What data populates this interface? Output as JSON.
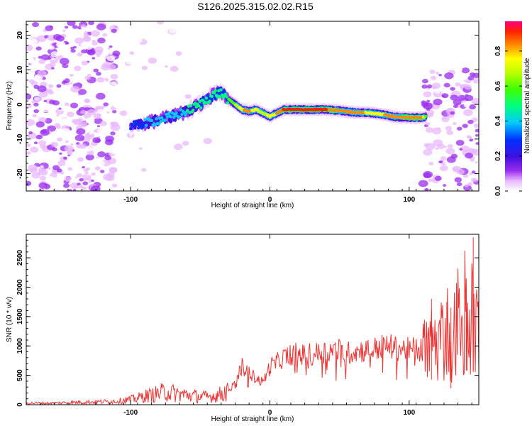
{
  "title": "S126.2025.315.02.02.R15",
  "chart_data": [
    {
      "type": "heatmap",
      "name": "spectrogram",
      "xlabel": "Height of straight line (km)",
      "ylabel": "Frequency (Hz)",
      "xlim": [
        -175,
        150
      ],
      "ylim": [
        -25,
        24
      ],
      "xticks": [
        -100,
        0,
        100
      ],
      "yticks": [
        -20,
        -10,
        0,
        10,
        20
      ],
      "colorbar": {
        "label": "Normalized spectral amplitude",
        "range": [
          0,
          0.97
        ],
        "ticks": [
          "0.0",
          "0.2",
          "0.4",
          "0.6",
          "0.8"
        ]
      },
      "ridge": {
        "description_points_x": [
          -100,
          -90,
          -80,
          -70,
          -60,
          -50,
          -40,
          -35,
          -30,
          -25,
          -20,
          -15,
          -10,
          -5,
          0,
          10,
          20,
          30,
          40,
          50,
          60,
          70,
          80,
          90,
          100,
          110,
          112
        ],
        "freq_y": [
          -6.5,
          -5.5,
          -4.5,
          -3.5,
          -2,
          0,
          3,
          3.2,
          1.5,
          0,
          -1.5,
          -2,
          -1.5,
          -2.5,
          -3.5,
          -1.5,
          -1.5,
          -1.5,
          -1.5,
          -1.8,
          -2.3,
          -2.4,
          -2.8,
          -3.6,
          -3.8,
          -3.8,
          -3.5
        ],
        "peak_amplitude": [
          0.35,
          0.4,
          0.45,
          0.45,
          0.5,
          0.55,
          0.55,
          0.55,
          0.6,
          0.7,
          0.85,
          0.9,
          0.8,
          0.75,
          0.8,
          0.95,
          0.97,
          0.97,
          0.95,
          0.9,
          0.9,
          0.85,
          0.85,
          0.9,
          0.92,
          0.92,
          0.6
        ]
      }
    },
    {
      "type": "line",
      "name": "snr",
      "xlabel": "Height of straight line (km)",
      "ylabel": "SNR (10 * v/v)",
      "xlim": [
        -175,
        150
      ],
      "ylim": [
        0,
        2900
      ],
      "xticks": [
        -100,
        0,
        100
      ],
      "yticks": [
        0,
        500,
        1000,
        1500,
        2000,
        2500
      ],
      "color": "#ee3333",
      "series": [
        {
          "name": "SNR",
          "x": [
            -175,
            -160,
            -140,
            -120,
            -110,
            -100,
            -95,
            -90,
            -85,
            -80,
            -75,
            -70,
            -65,
            -60,
            -55,
            -50,
            -45,
            -40,
            -35,
            -30,
            -25,
            -22,
            -20,
            -15,
            -10,
            -5,
            0,
            5,
            10,
            15,
            20,
            25,
            30,
            35,
            40,
            45,
            50,
            55,
            60,
            65,
            70,
            75,
            80,
            85,
            90,
            95,
            100,
            105,
            110,
            113,
            115,
            118,
            120,
            123,
            125,
            128,
            130,
            133,
            135,
            138,
            140,
            143,
            145,
            148,
            150
          ],
          "y": [
            30,
            25,
            40,
            50,
            60,
            90,
            110,
            150,
            160,
            190,
            220,
            200,
            180,
            170,
            150,
            140,
            130,
            150,
            180,
            250,
            350,
            550,
            650,
            550,
            450,
            380,
            650,
            720,
            800,
            860,
            870,
            840,
            860,
            880,
            910,
            930,
            920,
            880,
            900,
            920,
            930,
            950,
            980,
            1000,
            960,
            950,
            940,
            960,
            930,
            900,
            1050,
            1100,
            950,
            1250,
            1050,
            1400,
            700,
            1350,
            1500,
            1050,
            1650,
            1100,
            1500,
            1200,
            1400
          ]
        }
      ],
      "spikes": [
        {
          "x": 146,
          "y": 2850
        },
        {
          "x": 116,
          "y": 1800
        },
        {
          "x": 141,
          "y": 1900
        },
        {
          "x": 130,
          "y": 1650
        },
        {
          "x": 127,
          "y": 1750
        }
      ]
    }
  ]
}
